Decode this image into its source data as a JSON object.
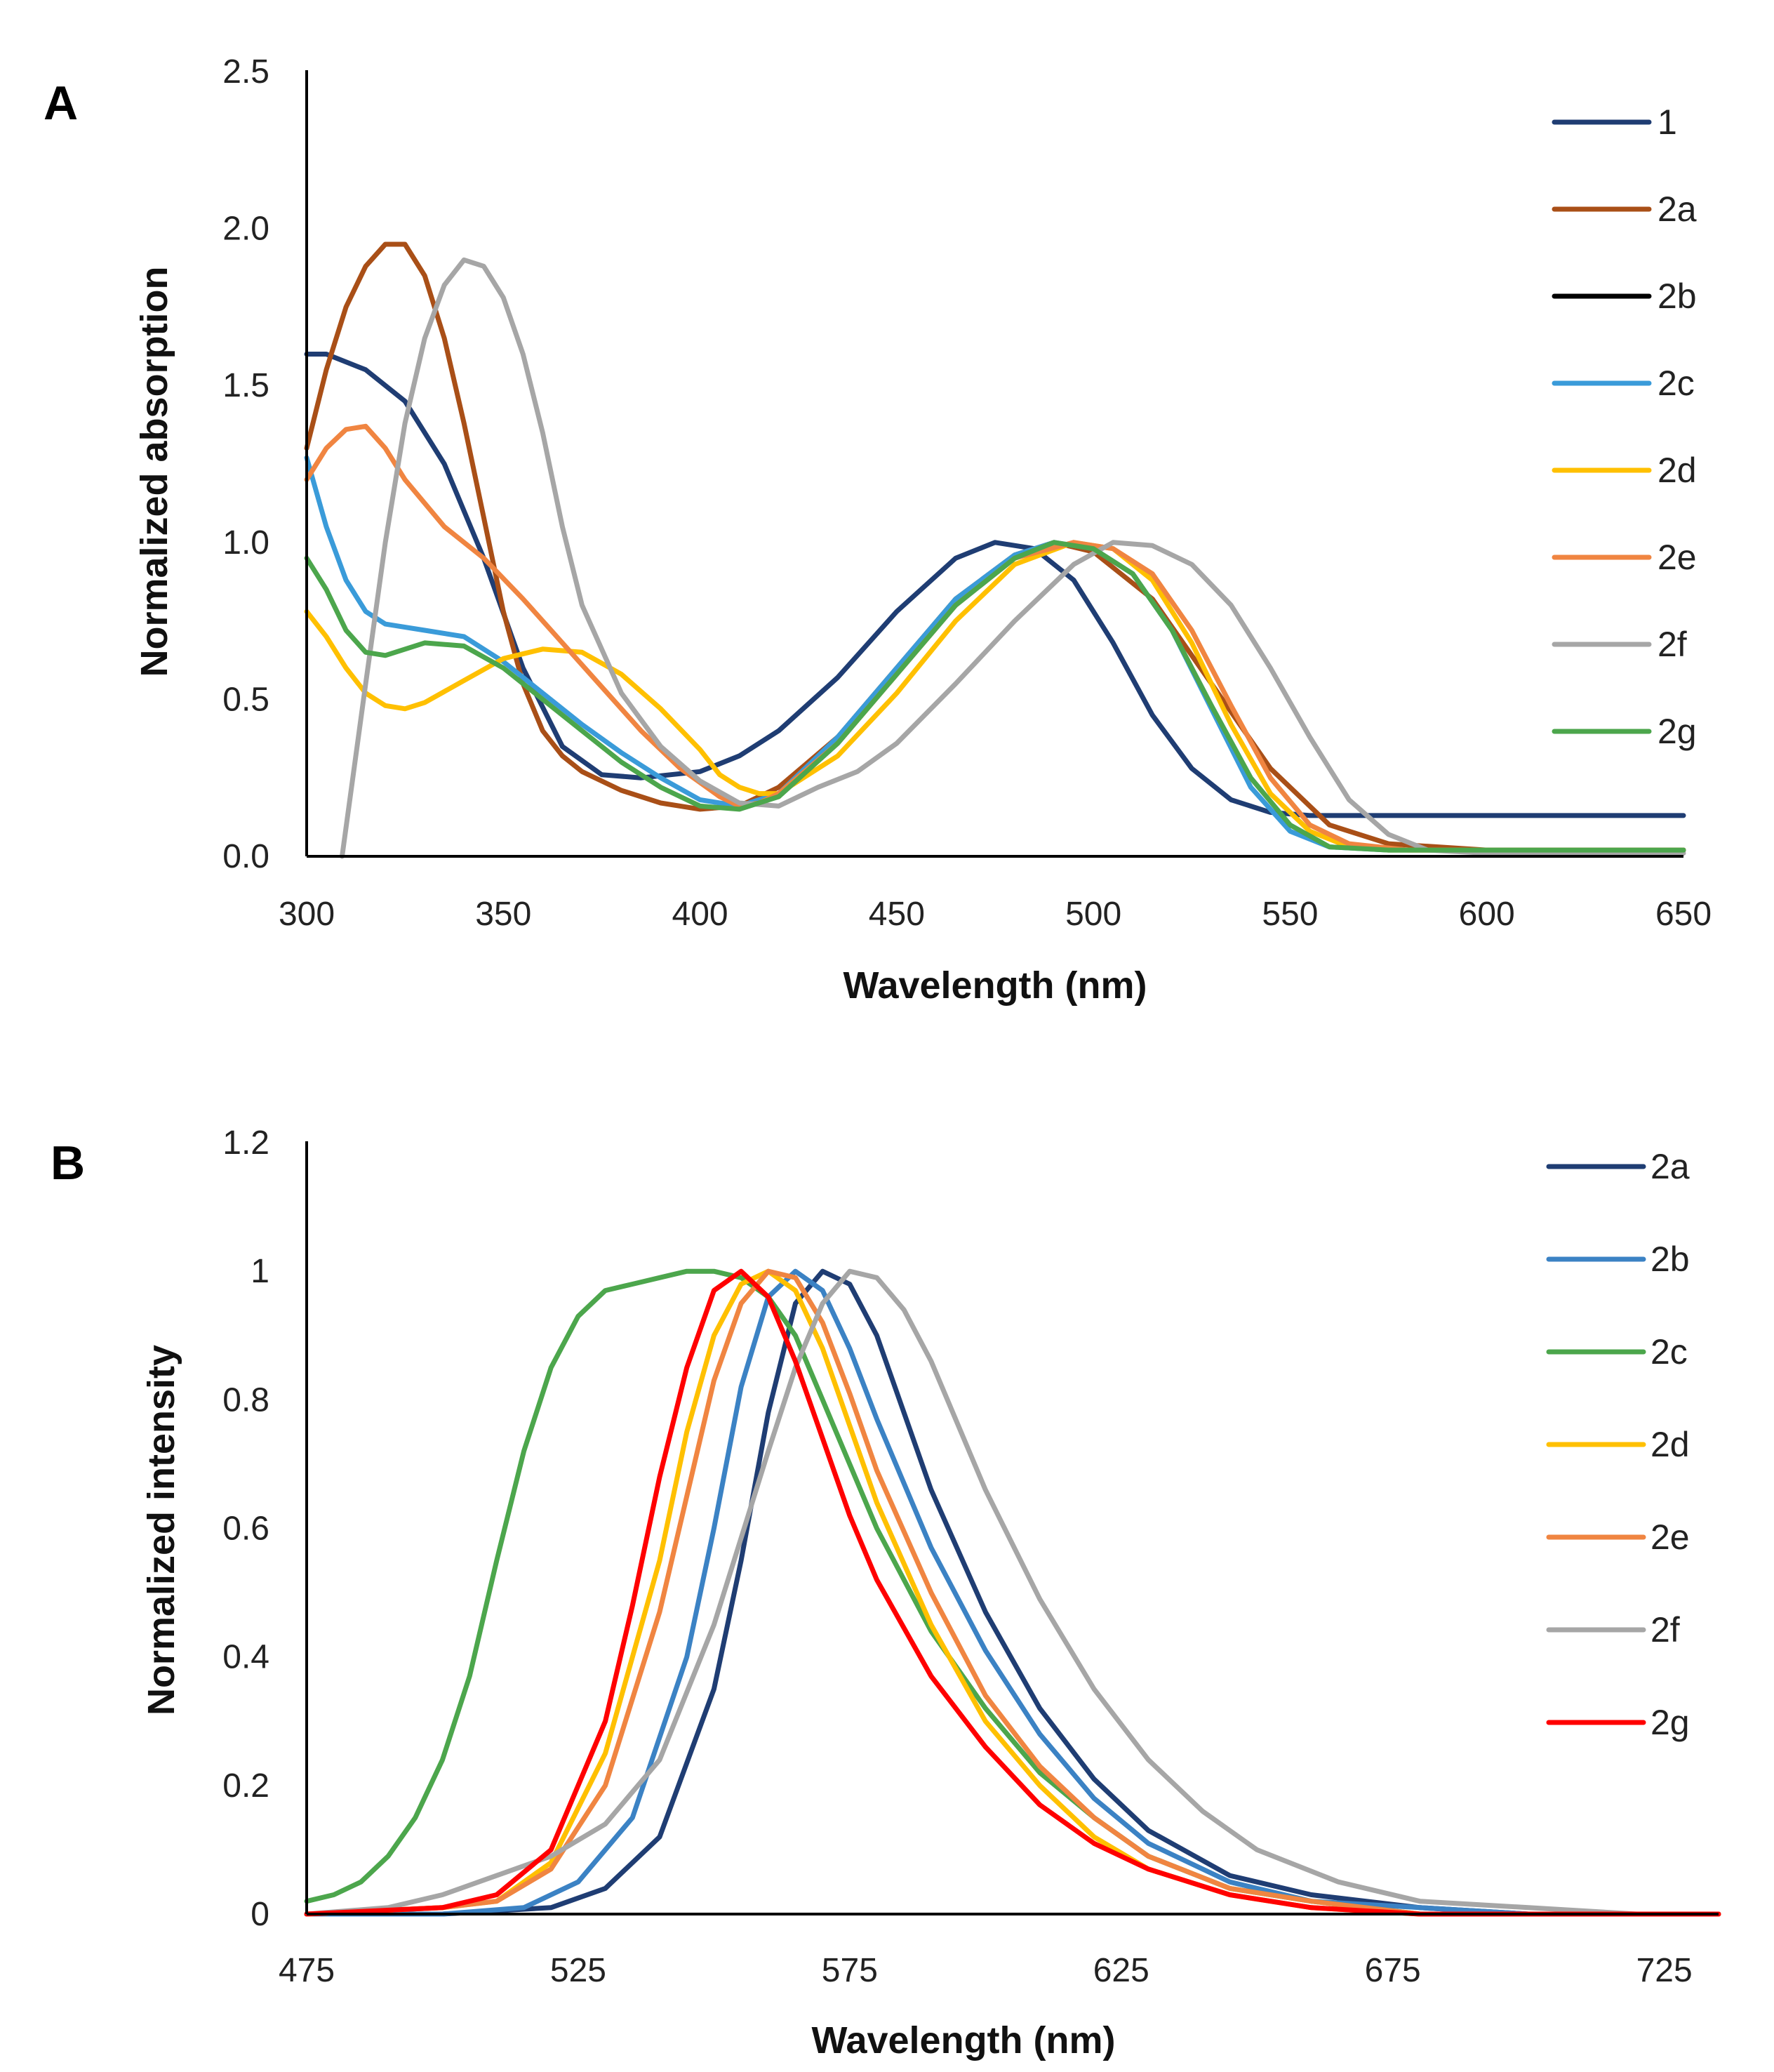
{
  "chart_data": [
    {
      "panel_label": "A",
      "type": "line",
      "xlabel": "Wavelength (nm)",
      "ylabel": "Normalized absorption",
      "xlim": [
        300,
        650
      ],
      "ylim": [
        0,
        2.5
      ],
      "x_ticks": [
        "300",
        "350",
        "400",
        "450",
        "500",
        "550",
        "600",
        "650"
      ],
      "y_ticks": [
        "0.0",
        "0.5",
        "1.0",
        "1.5",
        "2.0",
        "2.5"
      ],
      "grid": false,
      "legend_position": "top-right",
      "series": [
        {
          "name": "1",
          "color": "#1f3d73",
          "x": [
            300,
            305,
            315,
            325,
            335,
            345,
            355,
            365,
            375,
            385,
            400,
            410,
            420,
            435,
            450,
            465,
            475,
            485,
            495,
            505,
            515,
            525,
            535,
            545,
            555,
            565,
            580,
            600,
            625,
            650
          ],
          "y": [
            1.6,
            1.6,
            1.55,
            1.45,
            1.25,
            0.95,
            0.6,
            0.35,
            0.26,
            0.25,
            0.27,
            0.32,
            0.4,
            0.57,
            0.78,
            0.95,
            1.0,
            0.98,
            0.88,
            0.68,
            0.45,
            0.28,
            0.18,
            0.14,
            0.13,
            0.13,
            0.13,
            0.13,
            0.13,
            0.13
          ]
        },
        {
          "name": "2a",
          "color": "#a94f17",
          "x": [
            300,
            305,
            310,
            315,
            320,
            325,
            330,
            335,
            340,
            345,
            350,
            355,
            360,
            365,
            370,
            380,
            390,
            400,
            410,
            420,
            435,
            450,
            465,
            480,
            490,
            500,
            515,
            530,
            545,
            560,
            575,
            600,
            650
          ],
          "y": [
            1.3,
            1.55,
            1.75,
            1.88,
            1.95,
            1.95,
            1.85,
            1.65,
            1.38,
            1.08,
            0.78,
            0.55,
            0.4,
            0.32,
            0.27,
            0.21,
            0.17,
            0.15,
            0.16,
            0.22,
            0.38,
            0.6,
            0.82,
            0.96,
            1.0,
            0.97,
            0.82,
            0.55,
            0.28,
            0.1,
            0.04,
            0.02,
            0.02
          ]
        },
        {
          "name": "2b",
          "color": "#000000",
          "x": [
            600,
            650
          ],
          "y": [
            0.02,
            0.02
          ]
        },
        {
          "name": "2c",
          "color": "#3a9bd9",
          "x": [
            300,
            305,
            310,
            315,
            320,
            330,
            340,
            350,
            360,
            370,
            380,
            390,
            400,
            410,
            420,
            435,
            450,
            465,
            480,
            490,
            500,
            510,
            520,
            530,
            540,
            550,
            560,
            575,
            600,
            650
          ],
          "y": [
            1.27,
            1.05,
            0.88,
            0.78,
            0.74,
            0.72,
            0.7,
            0.62,
            0.52,
            0.42,
            0.33,
            0.25,
            0.18,
            0.16,
            0.2,
            0.38,
            0.6,
            0.82,
            0.96,
            1.0,
            0.98,
            0.9,
            0.72,
            0.47,
            0.22,
            0.08,
            0.03,
            0.02,
            0.02,
            0.02
          ]
        },
        {
          "name": "2d",
          "color": "#ffc000",
          "x": [
            300,
            305,
            310,
            315,
            320,
            325,
            330,
            340,
            350,
            360,
            370,
            380,
            390,
            400,
            405,
            410,
            415,
            420,
            435,
            450,
            465,
            480,
            495,
            505,
            515,
            525,
            535,
            545,
            555,
            565,
            575,
            600,
            650
          ],
          "y": [
            0.78,
            0.7,
            0.6,
            0.52,
            0.48,
            0.47,
            0.49,
            0.56,
            0.63,
            0.66,
            0.65,
            0.58,
            0.47,
            0.34,
            0.26,
            0.22,
            0.2,
            0.2,
            0.32,
            0.52,
            0.75,
            0.93,
            1.0,
            0.98,
            0.88,
            0.68,
            0.42,
            0.2,
            0.08,
            0.03,
            0.02,
            0.02,
            0.02
          ]
        },
        {
          "name": "2e",
          "color": "#f08541",
          "x": [
            300,
            305,
            310,
            315,
            320,
            325,
            335,
            345,
            355,
            365,
            375,
            385,
            395,
            405,
            410,
            415,
            420,
            435,
            450,
            465,
            480,
            495,
            505,
            515,
            525,
            535,
            545,
            555,
            565,
            580,
            600,
            650
          ],
          "y": [
            1.2,
            1.3,
            1.36,
            1.37,
            1.3,
            1.2,
            1.05,
            0.95,
            0.82,
            0.68,
            0.54,
            0.4,
            0.28,
            0.19,
            0.16,
            0.17,
            0.2,
            0.36,
            0.58,
            0.8,
            0.95,
            1.0,
            0.98,
            0.9,
            0.72,
            0.48,
            0.25,
            0.1,
            0.04,
            0.02,
            0.02,
            0.02
          ]
        },
        {
          "name": "2f",
          "color": "#a6a6a6",
          "x": [
            309,
            315,
            320,
            325,
            330,
            335,
            340,
            345,
            350,
            355,
            360,
            365,
            370,
            380,
            390,
            400,
            410,
            420,
            430,
            440,
            450,
            465,
            480,
            495,
            505,
            515,
            525,
            535,
            545,
            555,
            565,
            575,
            585,
            600,
            650
          ],
          "y": [
            0.0,
            0.55,
            1.0,
            1.38,
            1.65,
            1.82,
            1.9,
            1.88,
            1.78,
            1.6,
            1.35,
            1.05,
            0.8,
            0.52,
            0.35,
            0.24,
            0.17,
            0.16,
            0.22,
            0.27,
            0.36,
            0.55,
            0.75,
            0.93,
            1.0,
            0.99,
            0.93,
            0.8,
            0.6,
            0.38,
            0.18,
            0.07,
            0.02,
            0.01,
            0.01
          ]
        },
        {
          "name": "2g",
          "color": "#4ca64c",
          "x": [
            300,
            305,
            310,
            315,
            320,
            330,
            340,
            350,
            360,
            370,
            380,
            390,
            400,
            410,
            420,
            435,
            450,
            465,
            480,
            490,
            500,
            510,
            520,
            530,
            540,
            550,
            560,
            575,
            600,
            650
          ],
          "y": [
            0.95,
            0.85,
            0.72,
            0.65,
            0.64,
            0.68,
            0.67,
            0.6,
            0.5,
            0.4,
            0.3,
            0.22,
            0.16,
            0.15,
            0.19,
            0.36,
            0.58,
            0.8,
            0.95,
            1.0,
            0.98,
            0.9,
            0.72,
            0.48,
            0.25,
            0.1,
            0.03,
            0.02,
            0.02,
            0.02
          ]
        }
      ]
    },
    {
      "panel_label": "B",
      "type": "line",
      "xlabel": "Wavelength (nm)",
      "ylabel": "Normalized intensity",
      "xlim": [
        475,
        735
      ],
      "ylim": [
        0,
        1.2
      ],
      "x_ticks": [
        "475",
        "525",
        "575",
        "625",
        "675",
        "725"
      ],
      "y_ticks": [
        "0",
        "0.2",
        "0.4",
        "0.6",
        "0.8",
        "1",
        "1.2"
      ],
      "grid": false,
      "legend_position": "top-right",
      "series": [
        {
          "name": "2a",
          "color": "#1f3d73",
          "x": [
            475,
            500,
            520,
            530,
            540,
            550,
            555,
            560,
            565,
            570,
            575,
            580,
            585,
            590,
            600,
            610,
            620,
            630,
            645,
            660,
            680,
            700,
            735
          ],
          "y": [
            0.0,
            0.0,
            0.01,
            0.04,
            0.12,
            0.35,
            0.55,
            0.78,
            0.95,
            1.0,
            0.98,
            0.9,
            0.78,
            0.66,
            0.47,
            0.32,
            0.21,
            0.13,
            0.06,
            0.03,
            0.01,
            0.0,
            0.0
          ]
        },
        {
          "name": "2b",
          "color": "#3b82c4",
          "x": [
            475,
            500,
            515,
            525,
            535,
            545,
            550,
            555,
            560,
            565,
            570,
            575,
            580,
            590,
            600,
            610,
            620,
            630,
            645,
            660,
            680,
            700,
            735
          ],
          "y": [
            0.0,
            0.0,
            0.01,
            0.05,
            0.15,
            0.4,
            0.6,
            0.82,
            0.96,
            1.0,
            0.97,
            0.88,
            0.77,
            0.57,
            0.41,
            0.28,
            0.18,
            0.11,
            0.05,
            0.02,
            0.01,
            0.0,
            0.0
          ]
        },
        {
          "name": "2c",
          "color": "#4ca64c",
          "x": [
            475,
            480,
            485,
            490,
            495,
            500,
            505,
            510,
            515,
            520,
            525,
            530,
            535,
            540,
            545,
            550,
            555,
            560,
            565,
            570,
            575,
            580,
            590,
            600,
            610,
            620,
            630,
            645,
            660,
            680,
            700
          ],
          "y": [
            0.02,
            0.03,
            0.05,
            0.09,
            0.15,
            0.24,
            0.37,
            0.55,
            0.72,
            0.85,
            0.93,
            0.97,
            0.98,
            0.99,
            1.0,
            1.0,
            0.99,
            0.96,
            0.9,
            0.8,
            0.7,
            0.6,
            0.44,
            0.32,
            0.22,
            0.15,
            0.09,
            0.04,
            0.02,
            0.0,
            0.0
          ]
        },
        {
          "name": "2d",
          "color": "#ffc000",
          "x": [
            475,
            500,
            510,
            520,
            530,
            540,
            545,
            550,
            555,
            560,
            565,
            570,
            575,
            580,
            590,
            600,
            610,
            620,
            630,
            645,
            660,
            680,
            700,
            735
          ],
          "y": [
            0.0,
            0.01,
            0.02,
            0.08,
            0.25,
            0.55,
            0.75,
            0.9,
            0.98,
            1.0,
            0.97,
            0.88,
            0.76,
            0.64,
            0.45,
            0.3,
            0.2,
            0.12,
            0.07,
            0.03,
            0.01,
            0.0,
            0.0,
            0.0
          ]
        },
        {
          "name": "2e",
          "color": "#f08541",
          "x": [
            475,
            500,
            510,
            520,
            530,
            540,
            545,
            550,
            555,
            560,
            565,
            570,
            575,
            580,
            590,
            600,
            610,
            620,
            630,
            645,
            660,
            680,
            700,
            735
          ],
          "y": [
            0.0,
            0.01,
            0.02,
            0.07,
            0.2,
            0.47,
            0.65,
            0.83,
            0.95,
            1.0,
            0.99,
            0.92,
            0.81,
            0.69,
            0.5,
            0.34,
            0.23,
            0.15,
            0.09,
            0.04,
            0.02,
            0.0,
            0.0,
            0.0
          ]
        },
        {
          "name": "2f",
          "color": "#a6a6a6",
          "x": [
            475,
            490,
            500,
            510,
            520,
            530,
            540,
            550,
            560,
            565,
            570,
            575,
            580,
            585,
            590,
            595,
            600,
            610,
            620,
            630,
            640,
            650,
            665,
            680,
            700,
            720
          ],
          "y": [
            0.0,
            0.01,
            0.03,
            0.06,
            0.09,
            0.14,
            0.24,
            0.45,
            0.72,
            0.85,
            0.95,
            1.0,
            0.99,
            0.94,
            0.86,
            0.76,
            0.66,
            0.49,
            0.35,
            0.24,
            0.16,
            0.1,
            0.05,
            0.02,
            0.01,
            0.0
          ]
        },
        {
          "name": "2g",
          "color": "#ff0000",
          "x": [
            475,
            500,
            510,
            520,
            530,
            535,
            540,
            545,
            550,
            555,
            560,
            565,
            570,
            575,
            580,
            590,
            600,
            610,
            620,
            630,
            645,
            660,
            680,
            700,
            735
          ],
          "y": [
            0.0,
            0.01,
            0.03,
            0.1,
            0.3,
            0.48,
            0.68,
            0.85,
            0.97,
            1.0,
            0.96,
            0.86,
            0.74,
            0.62,
            0.52,
            0.37,
            0.26,
            0.17,
            0.11,
            0.07,
            0.03,
            0.01,
            0.0,
            0.0,
            0.0
          ]
        }
      ]
    }
  ]
}
